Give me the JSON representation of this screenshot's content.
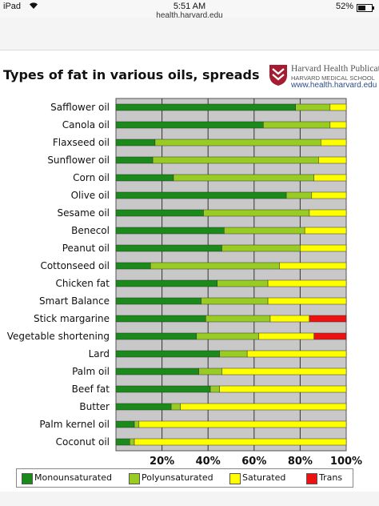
{
  "status": {
    "device": "iPad",
    "time": "5:51 AM",
    "battery": "52%"
  },
  "browser": {
    "url": "health.harvard.edu"
  },
  "header": {
    "title": "Types of fat in various oils, spreads",
    "logo_line1": "Harvard Health Publicati",
    "logo_line2": "HARVARD MEDICAL SCHOOL",
    "logo_line3": "www.health.harvard.edu"
  },
  "chart_data": {
    "type": "bar",
    "orientation": "horizontal",
    "stacked": true,
    "title": "Types of fat in various oils, spreads",
    "categories": [
      "Safflower oil",
      "Canola oil",
      "Flaxseed oil",
      "Sunflower oil",
      "Corn oil",
      "Olive oil",
      "Sesame oil",
      "Benecol",
      "Peanut oil",
      "Cottonseed oil",
      "Chicken fat",
      "Smart Balance",
      "Stick margarine",
      "Vegetable shortening",
      "Lard",
      "Palm oil",
      "Beef fat",
      "Butter",
      "Palm kernel oil",
      "Coconut oil"
    ],
    "series": [
      {
        "name": "Monounsaturated",
        "color": "#1a8a1a",
        "values": [
          78,
          64,
          17,
          16,
          25,
          74,
          38,
          47,
          46,
          15,
          44,
          37,
          39,
          35,
          45,
          36,
          41,
          24,
          8,
          6
        ]
      },
      {
        "name": "Polyunsaturated",
        "color": "#99cc22",
        "values": [
          15,
          29,
          72,
          72,
          61,
          11,
          46,
          35,
          34,
          56,
          22,
          29,
          28,
          27,
          12,
          10,
          4,
          4,
          2,
          2
        ]
      },
      {
        "name": "Saturated",
        "color": "#ffff00",
        "values": [
          7,
          7,
          11,
          12,
          14,
          15,
          16,
          18,
          20,
          29,
          34,
          34,
          17,
          24,
          43,
          54,
          55,
          72,
          90,
          92
        ]
      },
      {
        "name": "Trans",
        "color": "#ee1111",
        "values": [
          0,
          0,
          0,
          0,
          0,
          0,
          0,
          0,
          0,
          0,
          0,
          0,
          16,
          14,
          0,
          0,
          0,
          0,
          0,
          0
        ]
      }
    ],
    "x_ticks": [
      "20%",
      "40%",
      "60%",
      "80%",
      "100%"
    ],
    "xlim": [
      0,
      100
    ],
    "grid": "vertical",
    "legend_position": "bottom"
  }
}
